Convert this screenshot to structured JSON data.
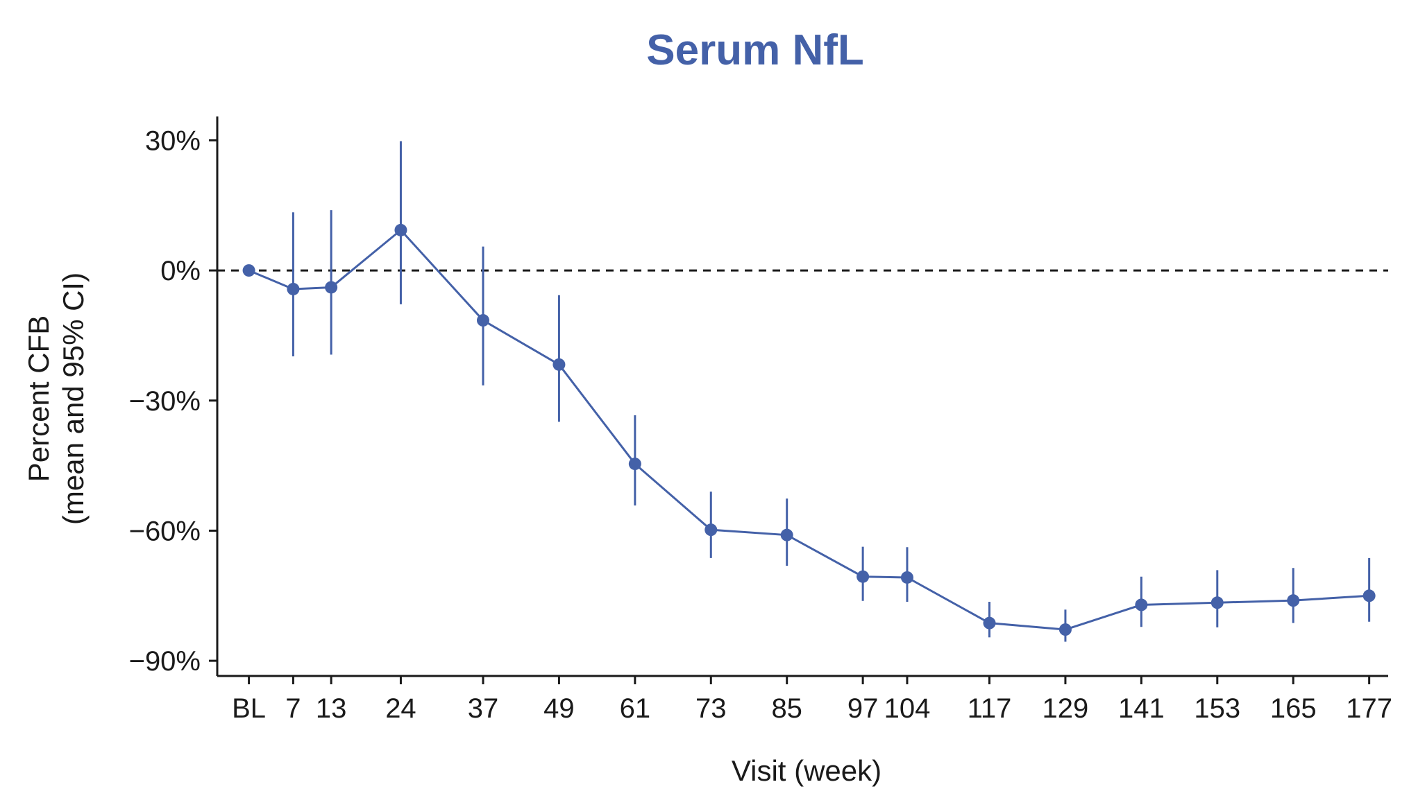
{
  "chart_data": {
    "type": "line",
    "title": "Serum NfL",
    "xlabel": "Visit (week)",
    "ylabel_lines": [
      "Percent CFB",
      "(mean and 95% CI)"
    ],
    "x": [
      0,
      7,
      13,
      24,
      37,
      49,
      61,
      73,
      85,
      97,
      104,
      117,
      129,
      141,
      153,
      165,
      177
    ],
    "x_tick_labels": [
      "BL",
      "7",
      "13",
      "24",
      "37",
      "49",
      "61",
      "73",
      "85",
      "97",
      "104",
      "117",
      "129",
      "141",
      "153",
      "165",
      "177"
    ],
    "y_ticks": [
      30,
      0,
      -30,
      -60,
      -90
    ],
    "y_tick_labels": [
      "30%",
      "0%",
      "−30%",
      "−60%",
      "−90%"
    ],
    "ylim": [
      -93.5,
      35.5
    ],
    "xlim": [
      -5,
      180
    ],
    "reference_line": {
      "y": 0,
      "style": "dashed"
    },
    "grid": false,
    "series": [
      {
        "values": [
          0,
          -4.3,
          -3.9,
          9.3,
          -11.5,
          -21.7,
          -44.6,
          -59.8,
          -61.0,
          -70.6,
          -70.8,
          -81.3,
          -82.8,
          -77.1,
          -76.6,
          -76.1,
          -75.0
        ],
        "ci_lower": [
          0,
          -19.8,
          -19.4,
          -7.8,
          -26.5,
          -34.9,
          -54.2,
          -66.3,
          -68.1,
          -76.2,
          -76.4,
          -84.6,
          -85.6,
          -82.2,
          -82.3,
          -81.3,
          -81.0
        ],
        "ci_upper": [
          0,
          13.4,
          13.9,
          29.8,
          5.5,
          -5.7,
          -33.4,
          -51.0,
          -52.6,
          -63.7,
          -63.8,
          -76.4,
          -78.2,
          -70.6,
          -69.1,
          -68.6,
          -66.3
        ]
      }
    ],
    "colors": {
      "series": "#4461a8",
      "title": "#4461a8",
      "axis": "#1a1a1a",
      "reference": "#1a1a1a"
    }
  }
}
